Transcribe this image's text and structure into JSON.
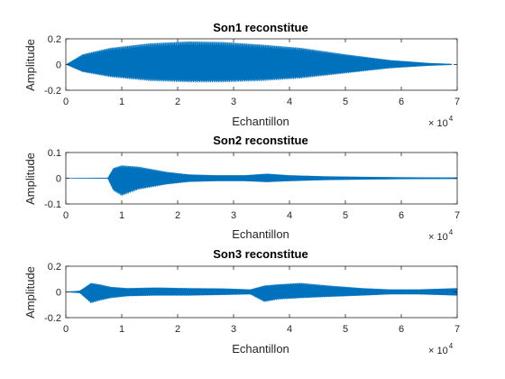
{
  "chart_data": [
    {
      "type": "area",
      "title": "Son1 reconstitue",
      "xlabel": "Echantillon",
      "ylabel": "Amplitude",
      "x_multiplier_label": "× 10",
      "x_multiplier_exponent": "4",
      "xlim": [
        0,
        70000
      ],
      "ylim": [
        -0.2,
        0.2
      ],
      "xticks": [
        0,
        1,
        2,
        3,
        4,
        5,
        6,
        7
      ],
      "yticks": [
        "-0.2",
        "0",
        "0.2"
      ],
      "yticks_values": [
        -0.2,
        0,
        0.2
      ],
      "color": "#0072bd",
      "envelope": {
        "x": [
          0,
          3000,
          8000,
          15000,
          22000,
          28000,
          35000,
          42000,
          50000,
          58000,
          65000,
          69000
        ],
        "upper": [
          0.0,
          0.08,
          0.13,
          0.165,
          0.18,
          0.175,
          0.155,
          0.13,
          0.08,
          0.035,
          0.012,
          0.005
        ],
        "lower": [
          0.0,
          -0.06,
          -0.1,
          -0.13,
          -0.14,
          -0.14,
          -0.13,
          -0.11,
          -0.07,
          -0.03,
          -0.01,
          -0.004
        ]
      }
    },
    {
      "type": "area",
      "title": "Son2 reconstitue",
      "xlabel": "Echantillon",
      "ylabel": "Amplitude",
      "x_multiplier_label": "× 10",
      "x_multiplier_exponent": "4",
      "xlim": [
        0,
        70000
      ],
      "ylim": [
        -0.1,
        0.1
      ],
      "xticks": [
        0,
        1,
        2,
        3,
        4,
        5,
        6,
        7
      ],
      "yticks": [
        "-0.1",
        "0",
        "0.1"
      ],
      "yticks_values": [
        -0.1,
        0,
        0.1
      ],
      "color": "#0072bd",
      "envelope": {
        "x": [
          0,
          7500,
          8500,
          10000,
          13000,
          18000,
          22000,
          27000,
          32000,
          36000,
          40000,
          46000,
          52000,
          60000,
          70000
        ],
        "upper": [
          0.001,
          0.002,
          0.04,
          0.05,
          0.045,
          0.025,
          0.015,
          0.012,
          0.012,
          0.018,
          0.012,
          0.008,
          0.006,
          0.004,
          0.003
        ],
        "lower": [
          -0.001,
          -0.002,
          -0.05,
          -0.07,
          -0.045,
          -0.025,
          -0.015,
          -0.012,
          -0.012,
          -0.016,
          -0.012,
          -0.008,
          -0.006,
          -0.004,
          -0.003
        ]
      }
    },
    {
      "type": "area",
      "title": "Son3 reconstitue",
      "xlabel": "Echantillon",
      "ylabel": "Amplitude",
      "x_multiplier_label": "× 10",
      "x_multiplier_exponent": "4",
      "xlim": [
        0,
        70000
      ],
      "ylim": [
        -0.2,
        0.2
      ],
      "xticks": [
        0,
        1,
        2,
        3,
        4,
        5,
        6,
        7
      ],
      "yticks": [
        "-0.2",
        "0",
        "0.2"
      ],
      "yticks_values": [
        -0.2,
        0,
        0.2
      ],
      "color": "#0072bd",
      "envelope": {
        "x": [
          0,
          2500,
          4500,
          6000,
          8000,
          11000,
          16000,
          22000,
          28000,
          33000,
          35500,
          38000,
          42000,
          47000,
          53000,
          58000,
          63000,
          70000
        ],
        "upper": [
          0.002,
          0.01,
          0.07,
          0.06,
          0.04,
          0.03,
          0.035,
          0.03,
          0.028,
          0.02,
          0.05,
          0.06,
          0.07,
          0.05,
          0.03,
          0.02,
          0.02,
          0.03
        ],
        "lower": [
          -0.002,
          -0.01,
          -0.09,
          -0.07,
          -0.05,
          -0.035,
          -0.03,
          -0.03,
          -0.025,
          -0.02,
          -0.08,
          -0.06,
          -0.05,
          -0.04,
          -0.03,
          -0.02,
          -0.02,
          -0.03
        ]
      }
    }
  ]
}
